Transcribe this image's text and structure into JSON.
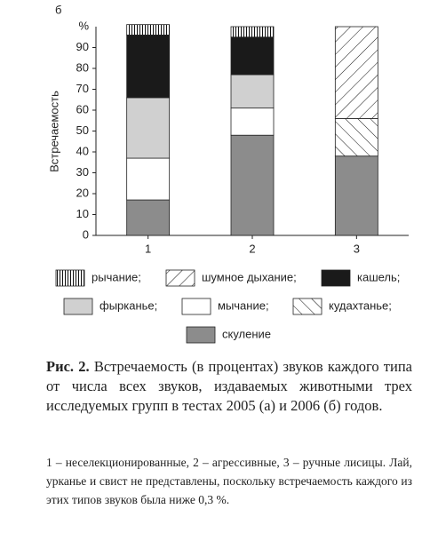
{
  "panel_label": "б",
  "chart_data": {
    "type": "stacked-bar",
    "y_label": "Встречаемость",
    "y_unit": "%",
    "categories": [
      "1",
      "2",
      "3"
    ],
    "ylim": [
      0,
      100
    ],
    "yticks": [
      0,
      10,
      20,
      30,
      40,
      50,
      60,
      70,
      80,
      90
    ],
    "series": [
      {
        "name": "рычание;",
        "color": "#ffffff",
        "pattern": "vertical",
        "values": [
          5,
          5,
          0
        ]
      },
      {
        "name": "шумное дыхание;",
        "color": "#ffffff",
        "pattern": "back-diagonal",
        "values": [
          0,
          0,
          44
        ]
      },
      {
        "name": "кашель;",
        "color": "#1a1a1a",
        "values": [
          30,
          18,
          0
        ]
      },
      {
        "name": "фырканье;",
        "color": "#d0d0d0",
        "values": [
          29,
          16,
          0
        ]
      },
      {
        "name": "мычание;",
        "color": "#ffffff",
        "values": [
          20,
          13,
          0
        ]
      },
      {
        "name": "кудахтанье;",
        "color": "#ffffff",
        "pattern": "diagonal",
        "values": [
          0,
          0,
          18
        ]
      },
      {
        "name": "скуление",
        "color": "#8c8c8c",
        "values": [
          17,
          48,
          38
        ]
      }
    ]
  },
  "caption": {
    "label": "Рис. 2.",
    "text": "Встречаемость (в процентах) звуков каждого типа от числа всех звуков, издаваемых животными трех исследуемых групп в тестах 2005 (а) и 2006 (б) годов."
  },
  "note": "1 – неселекционированные, 2 – агрессивные, 3 – ручные лисицы. Лай, урканье и свист не представлены, поскольку встречаемость каждого из этих типов звуков была ниже 0,3 %."
}
